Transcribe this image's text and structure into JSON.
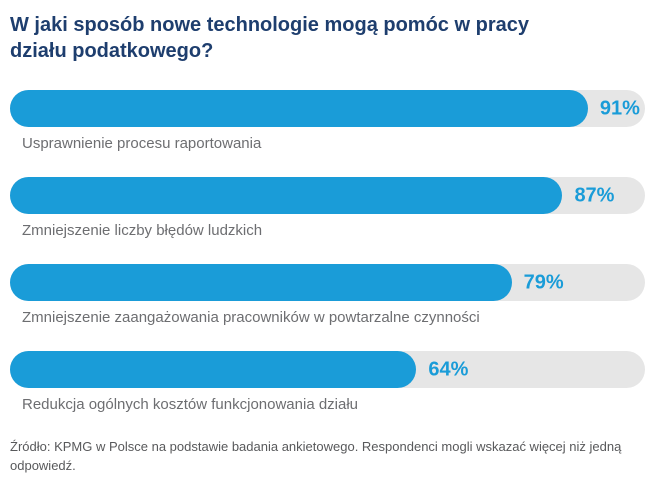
{
  "chart_data": {
    "type": "bar",
    "orientation": "horizontal",
    "title": "W jaki sposób nowe technologie mogą pomóc w pracy działu podatkowego?",
    "categories": [
      "Usprawnienie procesu raportowania",
      "Zmniejszenie liczby błędów ludzkich",
      "Zmniejszenie zaangażowania pracowników w powtarzalne czynności",
      "Redukcja ogólnych kosztów funkcjonowania działu"
    ],
    "values": [
      91,
      87,
      79,
      64
    ],
    "value_labels": [
      "91%",
      "87%",
      "79%",
      "64%"
    ],
    "unit": "%",
    "xlim": [
      0,
      100
    ],
    "grid": false,
    "legend": false,
    "bar_color": "#1a9cd8",
    "track_color": "#e6e6e6",
    "title_color": "#1e3e6e",
    "label_color": "#6d6e71"
  },
  "footer": {
    "source_note": "Źródło: KPMG w Polsce na podstawie badania ankietowego. Respondenci mogli wskazać więcej niż jedną odpowiedź."
  }
}
